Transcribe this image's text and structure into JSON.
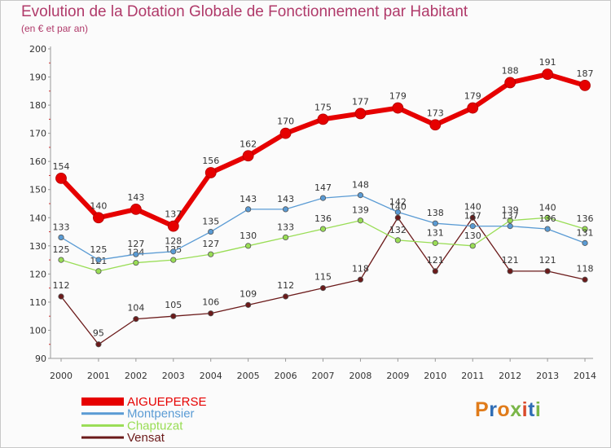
{
  "header": {
    "title": "Evolution de la Dotation Globale de Fonctionnement par Habitant",
    "subtitle": "(en € et par an)"
  },
  "logo": {
    "text": "Proxiti"
  },
  "colors": {
    "title": "#b03a6a",
    "AIGUEPERSE": "#e60000",
    "Montpensier": "#5a9bd4",
    "Chaptuzat": "#99dd55",
    "Vensat": "#6b1a1a"
  },
  "chart_data": {
    "type": "line",
    "title": "Evolution de la Dotation Globale de Fonctionnement par Habitant",
    "subtitle": "(en € et par an)",
    "xlabel": "",
    "ylabel": "",
    "ylim": [
      90,
      200
    ],
    "yticks": [
      90,
      100,
      110,
      120,
      130,
      140,
      150,
      160,
      170,
      180,
      190,
      200
    ],
    "grid": false,
    "legend_position": "bottom-left",
    "x": [
      "2000",
      "2001",
      "2002",
      "2003",
      "2004",
      "2005",
      "2006",
      "2007",
      "2008",
      "2009",
      "2010",
      "2011",
      "2012",
      "2013",
      "2014"
    ],
    "series": [
      {
        "name": "AIGUEPERSE",
        "values": [
          154,
          140,
          143,
          137,
          156,
          162,
          170,
          175,
          177,
          179,
          173,
          179,
          188,
          191,
          187
        ]
      },
      {
        "name": "Montpensier",
        "values": [
          133,
          125,
          127,
          128,
          135,
          143,
          143,
          147,
          148,
          142,
          138,
          137,
          137,
          136,
          131
        ]
      },
      {
        "name": "Chaptuzat",
        "values": [
          125,
          121,
          124,
          125,
          127,
          130,
          133,
          136,
          139,
          132,
          131,
          130,
          139,
          140,
          136
        ]
      },
      {
        "name": "Vensat",
        "values": [
          112,
          95,
          104,
          105,
          106,
          109,
          112,
          115,
          118,
          140,
          121,
          140,
          121,
          121,
          118
        ]
      }
    ]
  }
}
